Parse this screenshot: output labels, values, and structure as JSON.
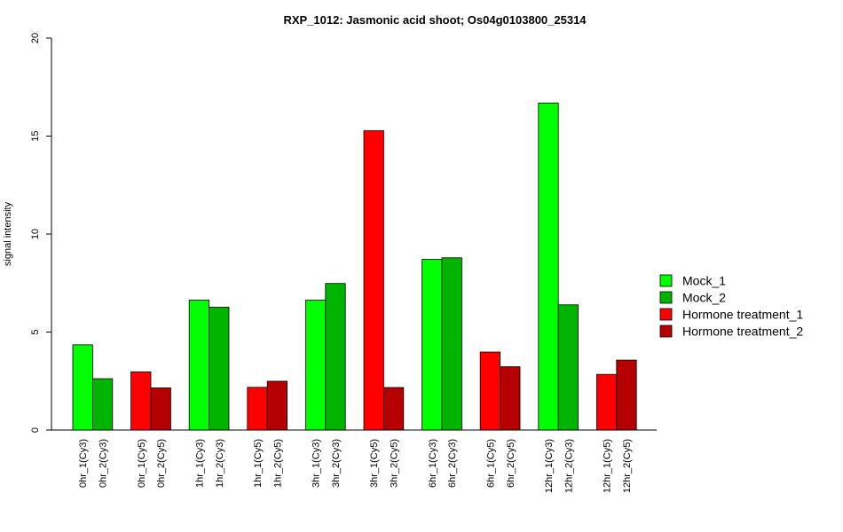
{
  "chart_data": {
    "type": "bar",
    "title": "RXP_1012: Jasmonic acid shoot; Os04g0103800_25314",
    "ylabel": "signal intensity",
    "xlabel": "",
    "ylim": [
      0,
      20
    ],
    "yticks": [
      "0",
      "5",
      "10",
      "15",
      "20"
    ],
    "grid": false,
    "legend_position": "right",
    "series": [
      {
        "name": "Mock_1",
        "color": "#00ff00"
      },
      {
        "name": "Mock_2",
        "color": "#00b400"
      },
      {
        "name": "Hormone treatment_1",
        "color": "#ff0000"
      },
      {
        "name": "Hormone treatment_2",
        "color": "#b40000"
      }
    ],
    "bars": [
      {
        "label": "0hr_1(Cy3)",
        "value": 4.35,
        "series": 0
      },
      {
        "label": "0hr_2(Cy3)",
        "value": 2.62,
        "series": 1
      },
      {
        "label": "0hr_1(Cy5)",
        "value": 2.97,
        "series": 2
      },
      {
        "label": "0hr_2(Cy5)",
        "value": 2.15,
        "series": 3
      },
      {
        "label": "1hr_1(Cy3)",
        "value": 6.63,
        "series": 0
      },
      {
        "label": "1hr_2(Cy3)",
        "value": 6.27,
        "series": 1
      },
      {
        "label": "1hr_1(Cy5)",
        "value": 2.18,
        "series": 2
      },
      {
        "label": "1hr_2(Cy5)",
        "value": 2.49,
        "series": 3
      },
      {
        "label": "3hr_1(Cy3)",
        "value": 6.63,
        "series": 0
      },
      {
        "label": "3hr_2(Cy3)",
        "value": 7.48,
        "series": 1
      },
      {
        "label": "3hr_1(Cy5)",
        "value": 15.28,
        "series": 2
      },
      {
        "label": "3hr_2(Cy5)",
        "value": 2.17,
        "series": 3
      },
      {
        "label": "6hr_1(Cy3)",
        "value": 8.71,
        "series": 0
      },
      {
        "label": "6hr_2(Cy3)",
        "value": 8.79,
        "series": 1
      },
      {
        "label": "6hr_1(Cy5)",
        "value": 3.98,
        "series": 2
      },
      {
        "label": "6hr_2(Cy5)",
        "value": 3.23,
        "series": 3
      },
      {
        "label": "12hr_1(Cy3)",
        "value": 16.69,
        "series": 0
      },
      {
        "label": "12hr_2(Cy3)",
        "value": 6.39,
        "series": 1
      },
      {
        "label": "12hr_1(Cy5)",
        "value": 2.84,
        "series": 2
      },
      {
        "label": "12hr_2(Cy5)",
        "value": 3.57,
        "series": 3
      }
    ]
  }
}
